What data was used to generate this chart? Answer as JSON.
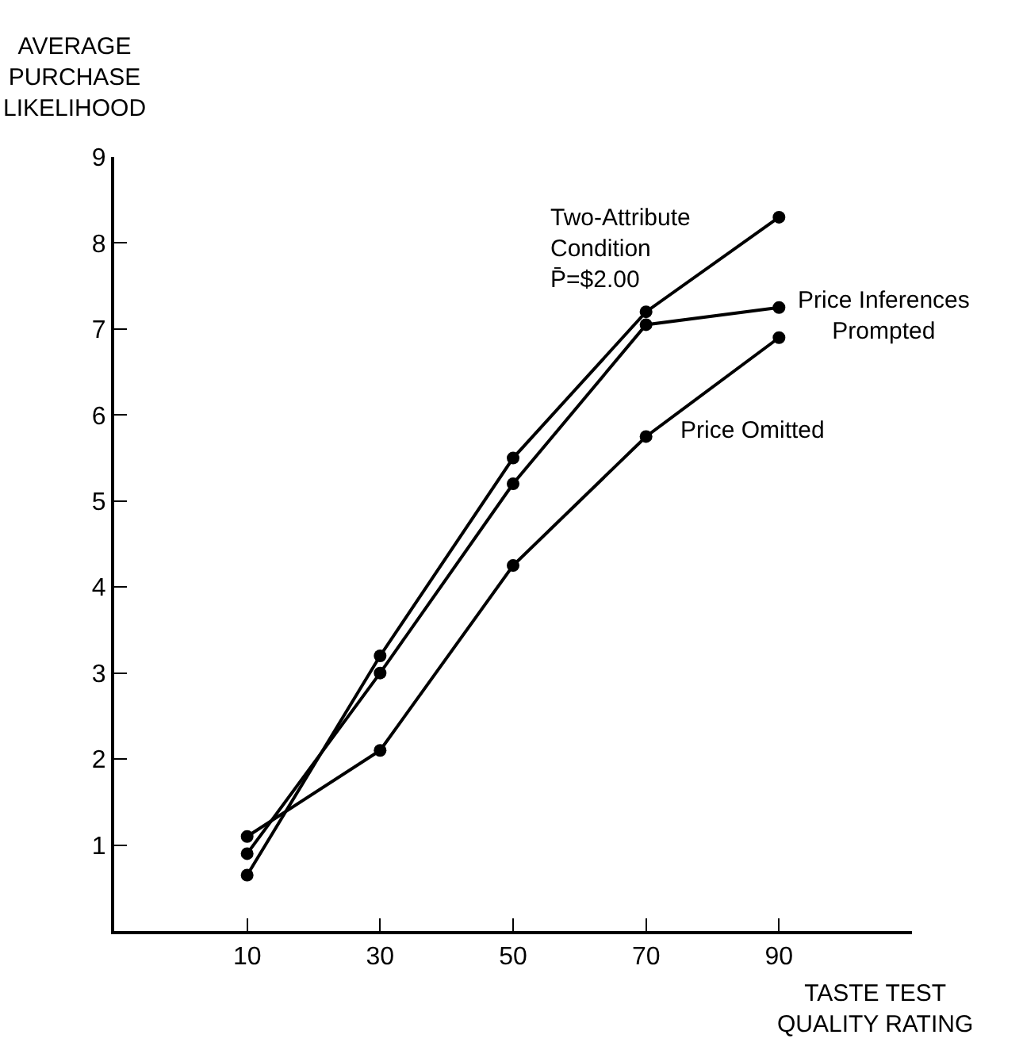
{
  "chart_data": {
    "type": "line",
    "ylabel": "AVERAGE\nPURCHASE\nLIKELIHOOD",
    "xlabel": "TASTE TEST\nQUALITY RATING",
    "x": [
      10,
      30,
      50,
      70,
      90
    ],
    "series": [
      {
        "name": "Two-Attribute\nCondition\nP̄=$2.00",
        "color": "#000000",
        "values": [
          0.65,
          3.2,
          5.5,
          7.2,
          8.3
        ]
      },
      {
        "name": "Price Inferences\nPrompted",
        "color": "#000000",
        "values": [
          0.9,
          3.0,
          5.2,
          7.05,
          7.25
        ]
      },
      {
        "name": "Price Omitted",
        "color": "#000000",
        "values": [
          1.1,
          2.1,
          4.25,
          5.75,
          6.9
        ]
      }
    ],
    "xlim": [
      -10,
      110
    ],
    "xticks": [
      10,
      30,
      50,
      70,
      90
    ],
    "ylim": [
      0,
      9
    ],
    "yticks": [
      1,
      2,
      3,
      4,
      5,
      6,
      7,
      8,
      9
    ],
    "grid": false,
    "legend": false,
    "marker": "circle",
    "line_style": "solid"
  }
}
